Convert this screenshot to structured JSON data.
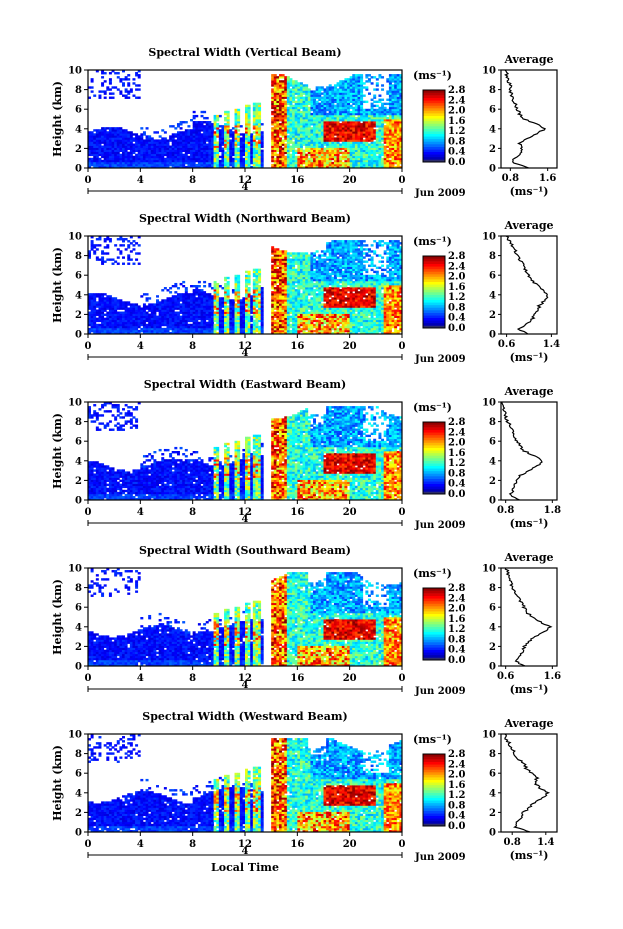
{
  "chart_data": [
    {
      "type": "heatmap",
      "title": "Spectral Width (Vertical Beam)",
      "ylabel": "Height (km)",
      "xticks": [
        "0",
        "4",
        "8",
        "12",
        "16",
        "20",
        "0"
      ],
      "yticks": [
        "0",
        "2",
        "4",
        "6",
        "8",
        "10"
      ],
      "xlim": [
        0,
        24
      ],
      "ylim": [
        0,
        10
      ],
      "day_marker": "4",
      "date_label": "Jun 2009",
      "colorbar_unit": "(ms⁻¹)",
      "colorbar_ticks": [
        "0.0",
        "0.4",
        "0.8",
        "1.2",
        "1.6",
        "2.0",
        "2.4",
        "2.8"
      ],
      "colorbar_range": [
        0,
        2.8
      ],
      "average_profile": {
        "title": "Average",
        "xlabel": "(ms⁻¹)",
        "xticks": [
          "0.8",
          "1.6"
        ],
        "xlim": [
          0.6,
          1.8
        ],
        "height": [
          0,
          0.5,
          1,
          1.5,
          2,
          2.5,
          3,
          3.5,
          4,
          4.5,
          5,
          5.5,
          6,
          6.5,
          7,
          7.5,
          8,
          8.5,
          9,
          9.5,
          10
        ],
        "width": [
          1.2,
          0.85,
          0.9,
          1.0,
          1.05,
          1.0,
          1.15,
          1.35,
          1.55,
          1.35,
          1.1,
          1.0,
          0.95,
          0.9,
          0.85,
          0.82,
          0.8,
          0.8,
          0.75,
          0.72,
          0.7
        ]
      }
    },
    {
      "type": "heatmap",
      "title": "Spectral Width (Northward Beam)",
      "ylabel": "Height (km)",
      "xticks": [
        "0",
        "4",
        "8",
        "12",
        "16",
        "20",
        "0"
      ],
      "yticks": [
        "0",
        "2",
        "4",
        "6",
        "8",
        "10"
      ],
      "xlim": [
        0,
        24
      ],
      "ylim": [
        0,
        10
      ],
      "day_marker": "4",
      "date_label": "Jun 2009",
      "colorbar_unit": "(ms⁻¹)",
      "colorbar_ticks": [
        "0.0",
        "0.4",
        "0.8",
        "1.2",
        "1.6",
        "2.0",
        "2.4",
        "2.8"
      ],
      "colorbar_range": [
        0,
        2.8
      ],
      "average_profile": {
        "title": "Average",
        "xlabel": "(ms⁻¹)",
        "xticks": [
          "0.6",
          "1.4"
        ],
        "xlim": [
          0.5,
          1.5
        ],
        "height": [
          0,
          0.5,
          1,
          1.5,
          2,
          2.5,
          3,
          3.5,
          4,
          4.5,
          5,
          5.5,
          6,
          6.5,
          7,
          7.5,
          8,
          8.5,
          9,
          9.5,
          10
        ],
        "width": [
          1.0,
          0.8,
          0.95,
          1.05,
          1.1,
          1.15,
          1.2,
          1.3,
          1.35,
          1.25,
          1.15,
          1.05,
          1.0,
          0.95,
          0.9,
          0.85,
          0.8,
          0.75,
          0.7,
          0.65,
          0.6
        ]
      }
    },
    {
      "type": "heatmap",
      "title": "Spectral Width (Eastward Beam)",
      "ylabel": "Height (km)",
      "xticks": [
        "0",
        "4",
        "8",
        "12",
        "16",
        "20",
        "0"
      ],
      "yticks": [
        "0",
        "2",
        "4",
        "6",
        "8",
        "10"
      ],
      "xlim": [
        0,
        24
      ],
      "ylim": [
        0,
        10
      ],
      "day_marker": "4",
      "date_label": "Jun 2009",
      "colorbar_unit": "(ms⁻¹)",
      "colorbar_ticks": [
        "0.0",
        "0.4",
        "0.8",
        "1.2",
        "1.6",
        "2.0",
        "2.4",
        "2.8"
      ],
      "colorbar_range": [
        0,
        2.8
      ],
      "average_profile": {
        "title": "Average",
        "xlabel": "(ms⁻¹)",
        "xticks": [
          "0.8",
          "1.8"
        ],
        "xlim": [
          0.7,
          1.9
        ],
        "height": [
          0,
          0.5,
          1,
          1.5,
          2,
          2.5,
          3,
          3.5,
          4,
          4.5,
          5,
          5.5,
          6,
          6.5,
          7,
          7.5,
          8,
          8.5,
          9,
          9.5,
          10
        ],
        "width": [
          1.1,
          0.9,
          0.95,
          1.0,
          1.05,
          1.1,
          1.3,
          1.5,
          1.6,
          1.4,
          1.2,
          1.1,
          1.05,
          1.0,
          0.95,
          0.9,
          0.85,
          0.8,
          0.78,
          0.75,
          0.72
        ]
      }
    },
    {
      "type": "heatmap",
      "title": "Spectral Width (Southward Beam)",
      "ylabel": "Height (km)",
      "xticks": [
        "0",
        "4",
        "8",
        "12",
        "16",
        "20",
        "0"
      ],
      "yticks": [
        "0",
        "2",
        "4",
        "6",
        "8",
        "10"
      ],
      "xlim": [
        0,
        24
      ],
      "ylim": [
        0,
        10
      ],
      "day_marker": "4",
      "date_label": "Jun 2009",
      "colorbar_unit": "(ms⁻¹)",
      "colorbar_ticks": [
        "0.0",
        "0.4",
        "0.8",
        "1.2",
        "1.6",
        "2.0",
        "2.4",
        "2.8"
      ],
      "colorbar_range": [
        0,
        2.8
      ],
      "average_profile": {
        "title": "Average",
        "xlabel": "(ms⁻¹)",
        "xticks": [
          "0.6",
          "1.6"
        ],
        "xlim": [
          0.5,
          1.7
        ],
        "height": [
          0,
          0.5,
          1,
          1.5,
          2,
          2.5,
          3,
          3.5,
          4,
          4.5,
          5,
          5.5,
          6,
          6.5,
          7,
          7.5,
          8,
          8.5,
          9,
          9.5,
          10
        ],
        "width": [
          1.0,
          0.8,
          0.9,
          0.95,
          1.0,
          1.1,
          1.25,
          1.45,
          1.55,
          1.35,
          1.15,
          1.05,
          1.0,
          0.95,
          0.85,
          0.8,
          0.75,
          0.7,
          0.68,
          0.65,
          0.62
        ]
      }
    },
    {
      "type": "heatmap",
      "title": "Spectral Width (Westward Beam)",
      "ylabel": "Height (km)",
      "xlabel": "Local Time",
      "xticks": [
        "0",
        "4",
        "8",
        "12",
        "16",
        "20",
        "0"
      ],
      "yticks": [
        "0",
        "2",
        "4",
        "6",
        "8",
        "10"
      ],
      "xlim": [
        0,
        24
      ],
      "ylim": [
        0,
        10
      ],
      "day_marker": "4",
      "date_label": "Jun 2009",
      "colorbar_unit": "(ms⁻¹)",
      "colorbar_ticks": [
        "0.0",
        "0.4",
        "0.8",
        "1.2",
        "1.6",
        "2.0",
        "2.4",
        "2.8"
      ],
      "colorbar_range": [
        0,
        2.8
      ],
      "average_profile": {
        "title": "Average",
        "xlabel": "(ms⁻¹)",
        "xticks": [
          "0.8",
          "1.4"
        ],
        "xlim": [
          0.6,
          1.6
        ],
        "height": [
          0,
          0.5,
          1,
          1.5,
          2,
          2.5,
          3,
          3.5,
          4,
          4.5,
          5,
          5.5,
          6,
          6.5,
          7,
          7.5,
          8,
          8.5,
          9,
          9.5,
          10
        ],
        "width": [
          1.1,
          0.85,
          0.9,
          0.95,
          1.0,
          1.1,
          1.2,
          1.35,
          1.45,
          1.3,
          1.2,
          1.25,
          1.15,
          1.05,
          1.0,
          0.9,
          0.85,
          0.8,
          0.75,
          0.7,
          0.68
        ]
      }
    }
  ]
}
